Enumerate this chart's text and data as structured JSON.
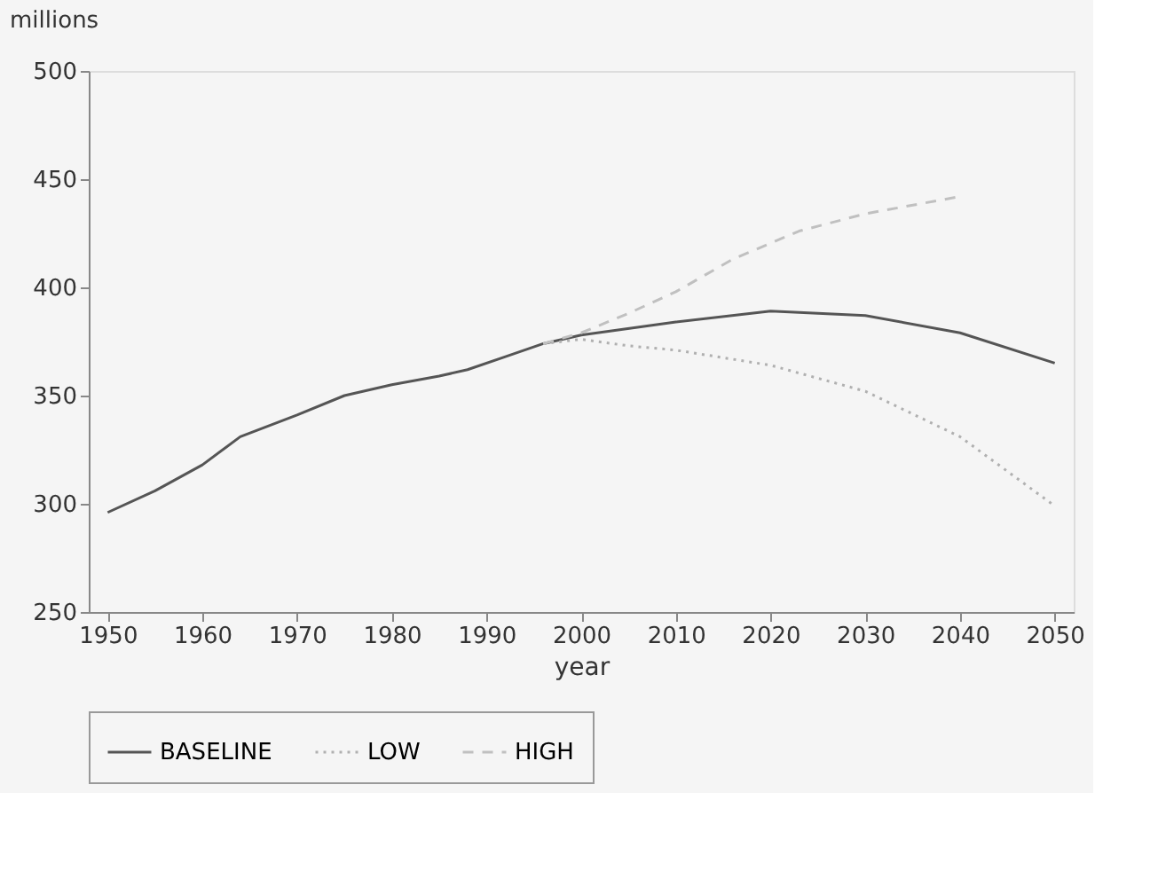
{
  "chart_data": {
    "type": "line",
    "xlabel": "year",
    "ylabel": "millions",
    "xlim": [
      1948,
      2052
    ],
    "xticks": [
      1950,
      1960,
      1970,
      1980,
      1990,
      2000,
      2010,
      2020,
      2030,
      2040,
      2050
    ],
    "ylim": [
      250,
      500
    ],
    "yticks": [
      250,
      300,
      350,
      400,
      450,
      500
    ],
    "grid": false,
    "legend": "bottom",
    "marker": "none",
    "series": [
      {
        "name": "BASELINE",
        "color": "#555555",
        "line_style": "solid",
        "x": [
          1950,
          1955,
          1960,
          1964,
          1970,
          1975,
          1980,
          1985,
          1988,
          1992,
          1996,
          2000,
          2010,
          2020,
          2030,
          2040,
          2050
        ],
        "values": [
          296,
          306,
          318,
          331,
          341,
          350,
          355,
          359,
          362,
          368,
          374,
          378,
          384,
          389,
          387,
          379,
          365
        ]
      },
      {
        "name": "LOW",
        "color": "#b0b0b0",
        "line_style": "dotted",
        "x": [
          1996,
          2000,
          2005,
          2010,
          2020,
          2030,
          2040,
          2050
        ],
        "values": [
          374,
          376,
          373,
          371,
          364,
          352,
          331,
          299
        ]
      },
      {
        "name": "HIGH",
        "color": "#c0c0c0",
        "line_style": "dashed",
        "x": [
          1996,
          2000,
          2005,
          2010,
          2016,
          2023,
          2030,
          2040
        ],
        "values": [
          374,
          379,
          388,
          398,
          413,
          426,
          434,
          442
        ]
      }
    ]
  }
}
